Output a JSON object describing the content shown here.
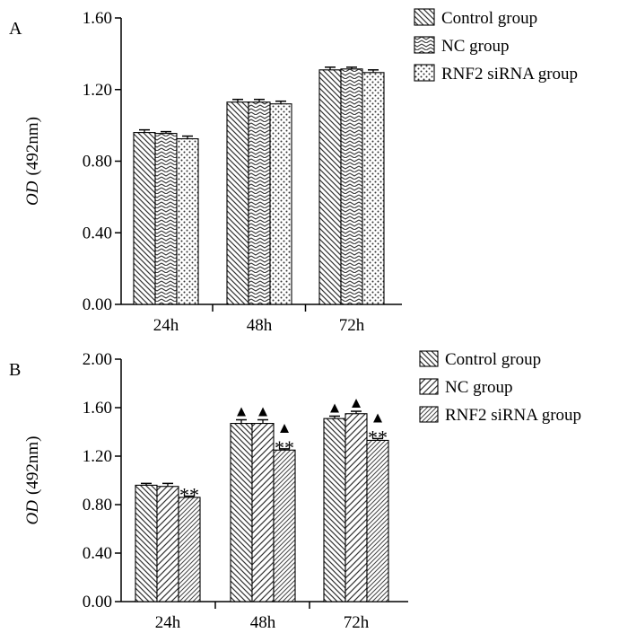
{
  "chart_data": [
    {
      "type": "bar",
      "panel_label": "A",
      "categories": [
        "24h",
        "48h",
        "72h"
      ],
      "series": [
        {
          "name": "Control group",
          "pattern": "diag-down",
          "values": [
            0.96,
            1.13,
            1.31
          ],
          "errors": [
            0.015,
            0.015,
            0.015
          ]
        },
        {
          "name": "NC group",
          "pattern": "chevron",
          "values": [
            0.955,
            1.13,
            1.315
          ],
          "errors": [
            0.01,
            0.015,
            0.01
          ]
        },
        {
          "name": "RNF2 siRNA group",
          "pattern": "dots",
          "values": [
            0.925,
            1.12,
            1.295
          ],
          "errors": [
            0.015,
            0.015,
            0.015
          ]
        }
      ],
      "yticks": [
        "0.00",
        "0.40",
        "0.80",
        "1.20",
        "1.60"
      ],
      "ylim": [
        0,
        1.6
      ],
      "ylabel_italic": "OD",
      "ylabel_rest": "(492nm)",
      "xlabel": "",
      "legend": "top-right",
      "annotations": []
    },
    {
      "type": "bar",
      "panel_label": "B",
      "categories": [
        "24h",
        "48h",
        "72h"
      ],
      "series": [
        {
          "name": "Control group",
          "pattern": "diag-down",
          "values": [
            0.96,
            1.47,
            1.51
          ],
          "errors": [
            0.015,
            0.03,
            0.02
          ]
        },
        {
          "name": "NC group",
          "pattern": "diag-up",
          "values": [
            0.95,
            1.47,
            1.55
          ],
          "errors": [
            0.025,
            0.03,
            0.02
          ]
        },
        {
          "name": "RNF2 siRNA group",
          "pattern": "diag-up-dense",
          "values": [
            0.86,
            1.25,
            1.33
          ],
          "errors": [
            0.01,
            0.01,
            0.015
          ]
        }
      ],
      "yticks": [
        "0.00",
        "0.40",
        "0.80",
        "1.20",
        "1.60",
        "2.00"
      ],
      "ylim": [
        0,
        2.0
      ],
      "ylabel_italic": "OD",
      "ylabel_rest": "(492nm)",
      "xlabel": "",
      "legend": "top-right",
      "annotations": [
        {
          "category": 0,
          "series": 2,
          "marks": [
            "**"
          ]
        },
        {
          "category": 1,
          "series": 0,
          "marks": [
            "▲"
          ]
        },
        {
          "category": 1,
          "series": 1,
          "marks": [
            "▲"
          ]
        },
        {
          "category": 1,
          "series": 2,
          "marks": [
            "▲",
            "**"
          ]
        },
        {
          "category": 2,
          "series": 0,
          "marks": [
            "▲"
          ]
        },
        {
          "category": 2,
          "series": 1,
          "marks": [
            "▲"
          ]
        },
        {
          "category": 2,
          "series": 2,
          "marks": [
            "▲",
            "**"
          ]
        }
      ]
    }
  ]
}
